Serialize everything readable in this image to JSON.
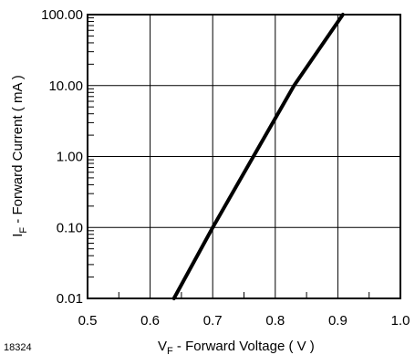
{
  "chart_data": {
    "type": "line",
    "title": "",
    "xlabel": {
      "sym": "V",
      "sub": "F",
      "text": " - Forward Voltage ( V )"
    },
    "ylabel": {
      "sym": "I",
      "sub": "F",
      "text": " - Forward Current ( mA )"
    },
    "figure_id": "18324",
    "xlim": [
      0.5,
      1.0
    ],
    "ylim": [
      0.01,
      100
    ],
    "yscale": "log",
    "xticks": [
      0.5,
      0.6,
      0.7,
      0.8,
      0.9,
      1.0
    ],
    "xtick_labels": [
      "0.5",
      "0.6",
      "0.7",
      "0.8",
      "0.9",
      "1.0"
    ],
    "yticks": [
      0.01,
      0.1,
      1,
      10,
      100
    ],
    "ytick_labels": [
      "0.01",
      "0.10",
      "1.00",
      "10.00",
      "100.00"
    ],
    "grid": true,
    "series": [
      {
        "x": [
          0.638,
          0.7,
          0.765,
          0.83,
          0.908
        ],
        "y": [
          0.01,
          0.1,
          1,
          10,
          100
        ]
      }
    ],
    "line_color": "#000000"
  }
}
